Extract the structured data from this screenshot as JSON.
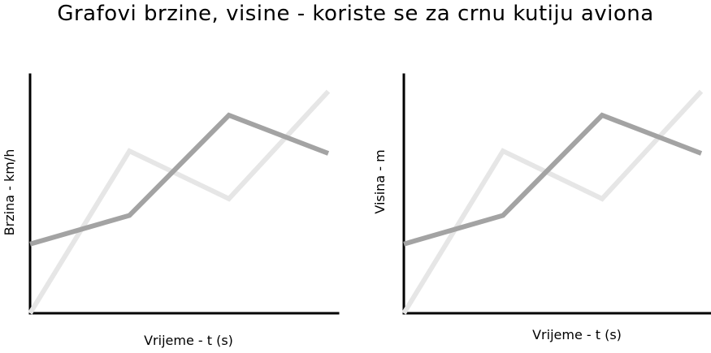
{
  "title": "Grafovi brzine, visine - koriste se za crnu kutiju aviona",
  "colors": {
    "series_light": "#e6e6e6",
    "series_dark": "#a3a3a3",
    "axis": "#000000"
  },
  "chart_data": [
    {
      "type": "line",
      "title": "",
      "xlabel": "Vrijeme - t (s)",
      "ylabel": "Brzina - km/h",
      "grid": false,
      "xlim": [
        0,
        3
      ],
      "ylim": [
        0,
        10
      ],
      "series": [
        {
          "x": [
            0,
            1,
            2,
            3
          ],
          "values": [
            0,
            6.8,
            4.8,
            9.3
          ]
        },
        {
          "x": [
            0,
            1,
            2,
            3
          ],
          "values": [
            2.9,
            4.1,
            8.3,
            6.7
          ]
        }
      ]
    },
    {
      "type": "line",
      "title": "",
      "xlabel": "Vrijeme - t (s)",
      "ylabel": "Visina - m",
      "grid": false,
      "xlim": [
        0,
        3
      ],
      "ylim": [
        0,
        10
      ],
      "series": [
        {
          "x": [
            0,
            1,
            2,
            3
          ],
          "values": [
            0,
            6.8,
            4.8,
            9.3
          ]
        },
        {
          "x": [
            0,
            1,
            2,
            3
          ],
          "values": [
            2.9,
            4.1,
            8.3,
            6.7
          ]
        }
      ]
    }
  ]
}
